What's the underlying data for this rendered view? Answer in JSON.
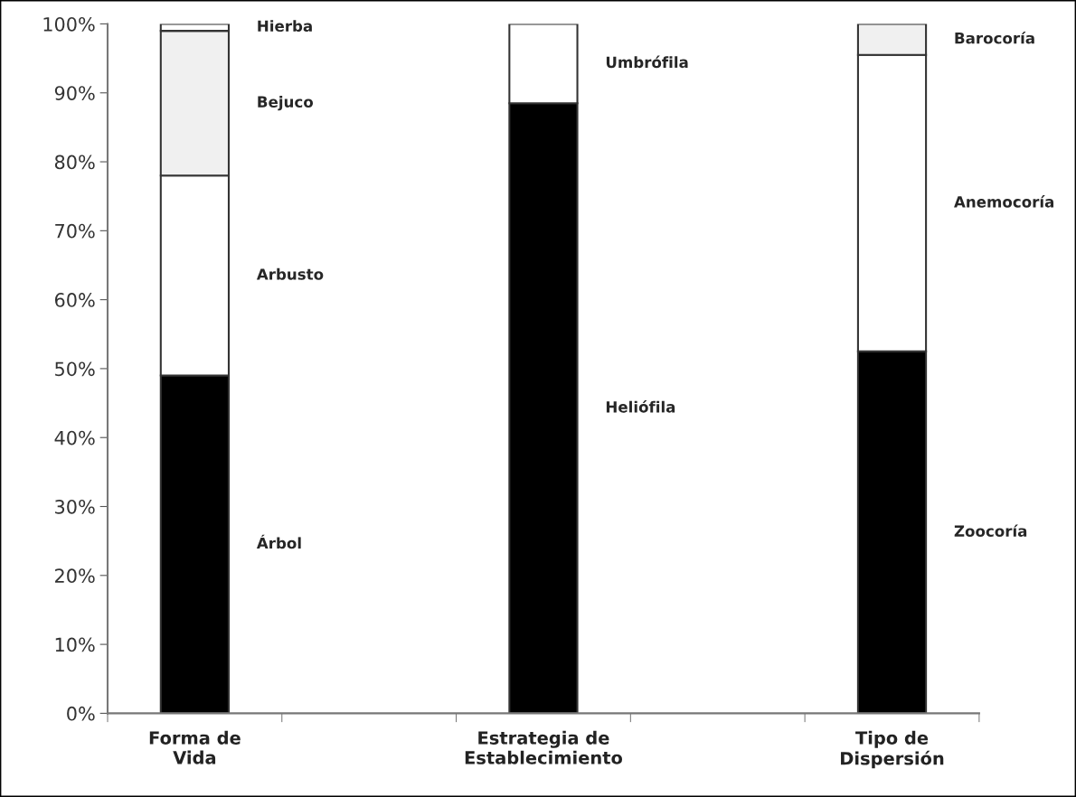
{
  "chart_data": {
    "type": "bar",
    "stacked": true,
    "categories": [
      "Forma de\nVida",
      null,
      "Estrategia de\nEstablecimiento",
      null,
      "Tipo de\nDispersión"
    ],
    "series": [
      {
        "name": "Árbol",
        "color": "#000000",
        "values": [
          49,
          null,
          null,
          null,
          null
        ]
      },
      {
        "name": "Arbusto",
        "color": "#ffffff",
        "values": [
          29,
          null,
          null,
          null,
          null
        ]
      },
      {
        "name": "Bejuco",
        "color": "#f0f0f0",
        "values": [
          21,
          null,
          null,
          null,
          null
        ]
      },
      {
        "name": "Hierba",
        "color": "#ffffff",
        "values": [
          1,
          null,
          null,
          null,
          null
        ]
      },
      {
        "name": "Heliófila",
        "color": "#000000",
        "values": [
          null,
          null,
          88.5,
          null,
          null
        ]
      },
      {
        "name": "Umbrófila",
        "color": "#ffffff",
        "values": [
          null,
          null,
          11.5,
          null,
          null
        ]
      },
      {
        "name": "Zoocoría",
        "color": "#000000",
        "values": [
          null,
          null,
          null,
          null,
          52.5
        ]
      },
      {
        "name": "Anemocoría",
        "color": "#ffffff",
        "values": [
          null,
          null,
          null,
          null,
          43
        ]
      },
      {
        "name": "Barocoría",
        "color": "#f0f0f0",
        "values": [
          null,
          null,
          null,
          null,
          4.5
        ]
      }
    ],
    "ylim": [
      0,
      100
    ],
    "yticks": [
      {
        "value": 0,
        "label": "0%"
      },
      {
        "value": 10,
        "label": "10%"
      },
      {
        "value": 20,
        "label": "20%"
      },
      {
        "value": 30,
        "label": "30%"
      },
      {
        "value": 40,
        "label": "40%"
      },
      {
        "value": 50,
        "label": "50%"
      },
      {
        "value": 60,
        "label": "60%"
      },
      {
        "value": 70,
        "label": "70%"
      },
      {
        "value": 80,
        "label": "80%"
      },
      {
        "value": 90,
        "label": "90%"
      },
      {
        "value": 100,
        "label": "100%"
      }
    ],
    "grid": false,
    "legend": false
  }
}
